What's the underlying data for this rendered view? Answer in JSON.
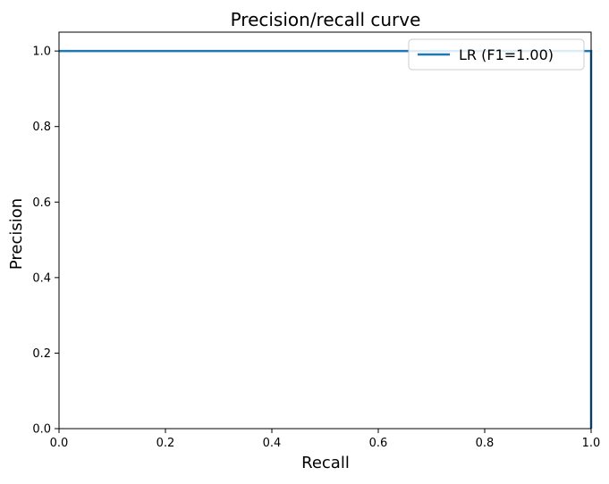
{
  "chart_data": {
    "type": "line",
    "title": "Precision/recall curve",
    "xlabel": "Recall",
    "ylabel": "Precision",
    "xlim": [
      0.0,
      1.0
    ],
    "ylim": [
      0.0,
      1.05
    ],
    "xticks": [
      0.0,
      0.2,
      0.4,
      0.6,
      0.8,
      1.0
    ],
    "xtick_labels": [
      "0.0",
      "0.2",
      "0.4",
      "0.6",
      "0.8",
      "1.0"
    ],
    "yticks": [
      0.0,
      0.2,
      0.4,
      0.6,
      0.8,
      1.0
    ],
    "ytick_labels": [
      "0.0",
      "0.2",
      "0.4",
      "0.6",
      "0.8",
      "1.0"
    ],
    "grid": false,
    "legend_position": "top-right",
    "series": [
      {
        "name": "LR (F1=1.00)",
        "color": "#1f77b4",
        "x": [
          0.0,
          1.0,
          1.0
        ],
        "y": [
          1.0,
          1.0,
          0.0
        ]
      }
    ]
  }
}
